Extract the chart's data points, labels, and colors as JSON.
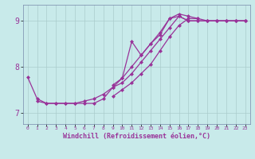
{
  "background_color": "#c8eaea",
  "line_color": "#993399",
  "grid_color": "#aacccc",
  "xlabel": "Windchill (Refroidissement éolien,°C)",
  "xlim": [
    -0.5,
    23.5
  ],
  "ylim": [
    6.75,
    9.35
  ],
  "yticks": [
    7,
    8,
    9
  ],
  "xticks": [
    0,
    1,
    2,
    3,
    4,
    5,
    6,
    7,
    8,
    9,
    10,
    11,
    12,
    13,
    14,
    15,
    16,
    17,
    18,
    19,
    20,
    21,
    22,
    23
  ],
  "series": [
    {
      "x": [
        0,
        1,
        2,
        3,
        4,
        5,
        6,
        7,
        8,
        9,
        10,
        11,
        12,
        13,
        14,
        15,
        16,
        17,
        18,
        19,
        20,
        21,
        22,
        23
      ],
      "y": [
        7.77,
        7.3,
        7.2,
        7.2,
        7.2,
        7.2,
        7.25,
        7.3,
        7.4,
        7.55,
        7.75,
        8.0,
        8.25,
        8.5,
        8.7,
        9.05,
        9.1,
        9.0,
        9.0,
        9.0,
        9.0,
        9.0,
        9.0,
        9.0
      ]
    },
    {
      "x": [
        1,
        2,
        3,
        4,
        5,
        6,
        7,
        8,
        9,
        10,
        11,
        12,
        13,
        14,
        15,
        16,
        17,
        18,
        19,
        20,
        21,
        22,
        23
      ],
      "y": [
        7.25,
        7.2,
        7.2,
        7.2,
        7.2,
        7.2,
        7.2,
        7.3,
        7.55,
        7.65,
        7.85,
        8.1,
        8.35,
        8.6,
        8.85,
        9.1,
        9.0,
        9.0,
        9.0,
        9.0,
        9.0,
        9.0,
        9.0
      ]
    },
    {
      "x": [
        9,
        10,
        11,
        12,
        13,
        14,
        15,
        16,
        17,
        18,
        19,
        20,
        21,
        22,
        23
      ],
      "y": [
        7.35,
        7.5,
        7.65,
        7.85,
        8.05,
        8.35,
        8.65,
        8.9,
        9.05,
        9.05,
        9.0,
        9.0,
        9.0,
        9.0,
        9.0
      ]
    },
    {
      "x": [
        9,
        10,
        11,
        12,
        13,
        14,
        15,
        16,
        17,
        18
      ],
      "y": [
        7.6,
        7.75,
        8.55,
        8.25,
        8.5,
        8.75,
        9.05,
        9.15,
        9.1,
        9.05
      ]
    }
  ],
  "xlabel_fontsize": 6,
  "xlabel_color": "#993399",
  "tick_color": "#993399",
  "spine_color": "#7788aa",
  "marker": "D",
  "markersize": 2.0,
  "linewidth": 0.9
}
